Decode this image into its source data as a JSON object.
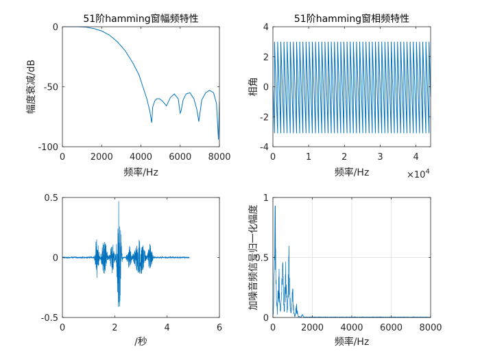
{
  "chart_data": [
    {
      "type": "line",
      "title": "51阶hamming窗幅频特性",
      "xlabel": "频率/Hz",
      "ylabel": "幅度衰减/dB",
      "xlim": [
        0,
        8000
      ],
      "ylim": [
        -100,
        0
      ],
      "xticks": [
        "0",
        "2000",
        "4000",
        "6000",
        "8000"
      ],
      "yticks": [
        "0",
        "-50",
        "-100"
      ],
      "grid": false,
      "color": "#0072BD",
      "series": [
        {
          "x": [
            0,
            400,
            800,
            1200,
            1600,
            2000,
            2400,
            2800,
            3200,
            3600,
            3900,
            4100,
            4300,
            4450,
            4550,
            4600,
            4700,
            4800,
            4950,
            5100,
            5300,
            5500,
            5700,
            5900,
            6000,
            6050,
            6150,
            6300,
            6500,
            6700,
            6850,
            6950,
            7000,
            7100,
            7300,
            7500,
            7700,
            7850,
            7950,
            8000
          ],
          "y": [
            0,
            0,
            0,
            -0.3,
            -1.5,
            -3.5,
            -7,
            -12.5,
            -20,
            -30.5,
            -40,
            -50,
            -60,
            -70,
            -80,
            -67,
            -62,
            -60,
            -60,
            -62,
            -66,
            -59,
            -56,
            -60,
            -72,
            -70,
            -61,
            -56,
            -55,
            -60,
            -69,
            -79,
            -73,
            -61,
            -55,
            -53,
            -55,
            -64,
            -94,
            -62
          ]
        }
      ]
    },
    {
      "type": "line",
      "title": "51阶hamming窗相频特性",
      "xlabel": "频率/Hz",
      "ylabel": "相角",
      "xlim": [
        0,
        44100
      ],
      "ylim": [
        -4,
        4
      ],
      "xticks": [
        "0",
        "1",
        "2",
        "3",
        "4"
      ],
      "yticks": [
        "4",
        "2",
        "0",
        "-2",
        "-4"
      ],
      "x_exponent": "10",
      "x_exponent_power": "4",
      "grid": false,
      "color": "#0072BD",
      "wraps": 50,
      "phase_range": [
        -3.1,
        3.0
      ]
    },
    {
      "type": "line",
      "title": "",
      "xlabel": "/秒",
      "ylabel": "",
      "xlim": [
        0,
        6
      ],
      "ylim": [
        -0.5,
        0.5
      ],
      "xticks": [
        "0",
        "2",
        "4",
        "6"
      ],
      "yticks": [
        "0.5",
        "0",
        "-0.5"
      ],
      "grid": false,
      "color": "#0072BD",
      "signal_end": 4.85,
      "bursts": [
        {
          "center": 1.32,
          "width": 0.1,
          "amp": 0.18
        },
        {
          "center": 1.6,
          "width": 0.15,
          "amp": 0.16
        },
        {
          "center": 1.9,
          "width": 0.12,
          "amp": 0.14
        },
        {
          "center": 2.16,
          "width": 0.12,
          "amp": 0.48
        },
        {
          "center": 2.55,
          "width": 0.12,
          "amp": 0.1
        },
        {
          "center": 2.95,
          "width": 0.3,
          "amp": 0.16
        },
        {
          "center": 3.35,
          "width": 0.12,
          "amp": 0.12
        }
      ]
    },
    {
      "type": "line",
      "title": "",
      "xlabel": "频率/Hz",
      "ylabel": "加噪音频信号归一化幅度",
      "xlim": [
        0,
        8000
      ],
      "ylim": [
        0,
        1
      ],
      "xticks": [
        "0",
        "2000",
        "4000",
        "6000",
        "8000"
      ],
      "yticks": [
        "1",
        "0.5",
        "0"
      ],
      "grid": true,
      "color": "#0072BD",
      "peaks": [
        {
          "x": 120,
          "y": 1.0
        },
        {
          "x": 300,
          "y": 0.46
        },
        {
          "x": 480,
          "y": 0.69
        },
        {
          "x": 650,
          "y": 0.53
        },
        {
          "x": 820,
          "y": 0.63
        },
        {
          "x": 1000,
          "y": 0.27
        },
        {
          "x": 1200,
          "y": 0.12
        },
        {
          "x": 1500,
          "y": 0.03
        }
      ]
    }
  ]
}
